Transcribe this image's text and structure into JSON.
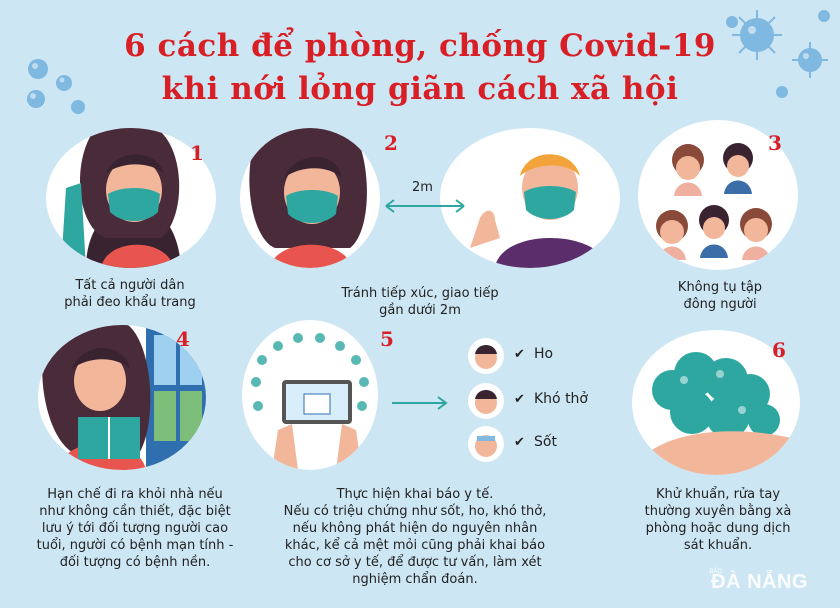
{
  "title": {
    "line1": "6 cách để phòng, chống Covid-19",
    "line2": "khi nới lỏng giãn cách xã hội"
  },
  "items": [
    {
      "number": "1",
      "caption": [
        "Tất cả người dân",
        "phải đeo khẩu trang"
      ]
    },
    {
      "number": "2",
      "distance": "2m",
      "caption": [
        "Tránh tiếp xúc, giao tiếp",
        "gần dưới 2m"
      ]
    },
    {
      "number": "3",
      "caption": [
        "Không tụ tập",
        "đông người"
      ]
    },
    {
      "number": "4",
      "caption": [
        "Hạn chế đi ra khỏi nhà nếu",
        "như không cần thiết, đặc biệt",
        "lưu ý tới đối tượng người cao",
        "tuổi, người có bệnh mạn tính -",
        "đối tượng có bệnh nền."
      ]
    },
    {
      "number": "5",
      "symptoms": [
        "Ho",
        "Khó thở",
        "Sốt"
      ],
      "caption": [
        "Thực hiện khai báo y tế.",
        "Nếu có triệu chứng như sốt, ho, khó thở,",
        "nếu không phát hiện do nguyên nhân",
        "khác, kể cả mệt mỏi cũng phải khai báo",
        "cho cơ sở y tế, để được tư vấn, làm xét",
        "nghiệm chẩn đoán."
      ]
    },
    {
      "number": "6",
      "caption": [
        "Khử khuẩn, rửa tay",
        "thường xuyên bằng xà",
        "phòng hoặc dung dịch",
        "sát khuẩn."
      ]
    }
  ],
  "watermark": {
    "small": "BÁO",
    "main": "ĐÀ NẴNG"
  },
  "colors": {
    "title": "#d81f26",
    "background": "#cde6f4",
    "mask": "#2fa7a1",
    "virus": "#7fb8e0"
  }
}
